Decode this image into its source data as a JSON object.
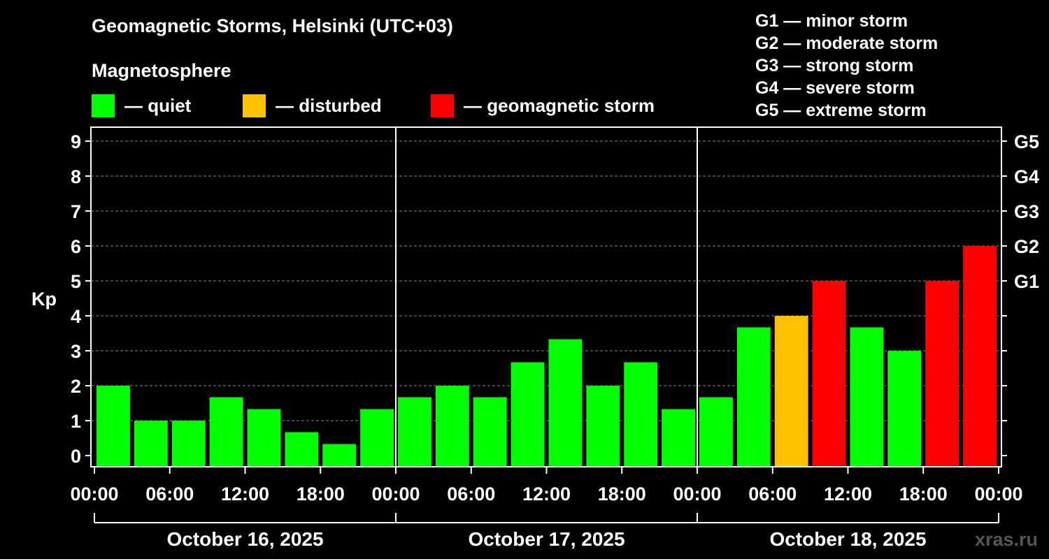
{
  "header": {
    "title": "Geomagnetic Storms, Helsinki (UTC+03)",
    "magnetosphere_label": "Magnetosphere"
  },
  "legend": [
    {
      "label": "— quiet",
      "color": "#00ff00"
    },
    {
      "label": "— disturbed",
      "color": "#ffc000"
    },
    {
      "label": "— geomagnetic storm",
      "color": "#ff0000"
    }
  ],
  "storm_scale": [
    "G1 — minor storm",
    "G2 — moderate storm",
    "G3 — strong storm",
    "G4 — severe storm",
    "G5 — extreme storm"
  ],
  "credit": "xras.ru",
  "chart_data": {
    "type": "bar",
    "title": "Geomagnetic Storms, Helsinki (UTC+03)",
    "ylabel": "Kp",
    "ylim": [
      0,
      9
    ],
    "y_ticks": [
      0,
      1,
      2,
      3,
      4,
      5,
      6,
      7,
      8,
      9
    ],
    "right_axis_labels": [
      {
        "kp": 5,
        "label": "G1"
      },
      {
        "kp": 6,
        "label": "G2"
      },
      {
        "kp": 7,
        "label": "G3"
      },
      {
        "kp": 8,
        "label": "G4"
      },
      {
        "kp": 9,
        "label": "G5"
      }
    ],
    "x_tick_labels": [
      "00:00",
      "06:00",
      "12:00",
      "18:00",
      "00:00",
      "06:00",
      "12:00",
      "18:00",
      "00:00",
      "06:00",
      "12:00",
      "18:00",
      "00:00"
    ],
    "days": [
      "October 16, 2025",
      "October 17, 2025",
      "October 18, 2025"
    ],
    "colors": {
      "quiet": "#00ff00",
      "disturbed": "#ffc000",
      "storm": "#ff0000"
    },
    "values": [
      2,
      1,
      1,
      1.67,
      1.33,
      0.67,
      0.33,
      1.33,
      1.67,
      2,
      1.67,
      2.67,
      3.33,
      2,
      2.67,
      1.33,
      1.67,
      3.67,
      4,
      5,
      3.67,
      3,
      5,
      6
    ],
    "status": [
      "quiet",
      "quiet",
      "quiet",
      "quiet",
      "quiet",
      "quiet",
      "quiet",
      "quiet",
      "quiet",
      "quiet",
      "quiet",
      "quiet",
      "quiet",
      "quiet",
      "quiet",
      "quiet",
      "quiet",
      "quiet",
      "disturbed",
      "storm",
      "quiet",
      "quiet",
      "storm",
      "storm"
    ],
    "grid": "dashed horizontal"
  }
}
